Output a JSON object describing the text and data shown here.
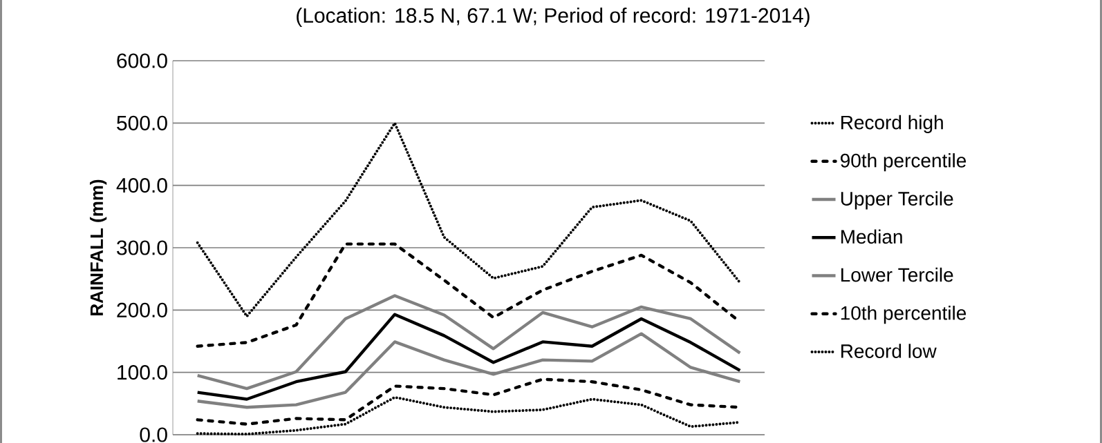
{
  "chart_data": {
    "type": "line",
    "title": "(Location: 18.5 N, 67.1 W; Period of record: 1971-2014)",
    "ylabel": "**RAINFALL (mm)**",
    "categories": [
      null,
      null,
      null,
      null,
      null,
      null,
      null,
      null,
      null,
      null,
      null,
      null
    ],
    "series": [
      {
        "name": "Record high",
        "color": "#000000",
        "line_style": "dotted",
        "values": [
          308,
          190,
          285,
          375,
          500,
          317,
          251,
          270,
          365,
          376,
          343,
          244
        ]
      },
      {
        "name": "90th percentile",
        "color": "#000000",
        "line_style": "dashed",
        "values": [
          142,
          148,
          176,
          306,
          306,
          248,
          188,
          232,
          262,
          288,
          244,
          181
        ]
      },
      {
        "name": "Upper Tercile",
        "color": "#808080",
        "line_style": "solid",
        "values": [
          95,
          74,
          101,
          186,
          223,
          192,
          138,
          196,
          173,
          205,
          186,
          131
        ]
      },
      {
        "name": "Median",
        "color": "#000000",
        "line_style": "solid",
        "values": [
          68,
          57,
          85,
          101,
          193,
          159,
          116,
          149,
          142,
          186,
          148,
          103
        ]
      },
      {
        "name": "Lower Tercile",
        "color": "#808080",
        "line_style": "solid",
        "values": [
          54,
          44,
          48,
          68,
          149,
          120,
          97,
          120,
          118,
          162,
          108,
          85
        ]
      },
      {
        "name": "10th percentile",
        "color": "#000000",
        "line_style": "dashed",
        "values": [
          24,
          17,
          26,
          24,
          78,
          74,
          64,
          89,
          85,
          72,
          48,
          44
        ]
      },
      {
        "name": "Record low",
        "color": "#000000",
        "line_style": "dotted",
        "values": [
          2,
          1,
          7,
          17,
          60,
          44,
          37,
          40,
          57,
          48,
          13,
          20
        ]
      }
    ],
    "ylim": [
      0,
      600
    ],
    "yticks": [
      {
        "value": 0,
        "label": "0.0"
      },
      {
        "value": 100,
        "label": "100.0"
      },
      {
        "value": 200,
        "label": "200.0"
      },
      {
        "value": 300,
        "label": "300.0"
      },
      {
        "value": 400,
        "label": "400.0"
      },
      {
        "value": 500,
        "label": "500.0"
      },
      {
        "value": 600,
        "label": "600.0"
      }
    ],
    "grid": "y",
    "legend": "right"
  }
}
